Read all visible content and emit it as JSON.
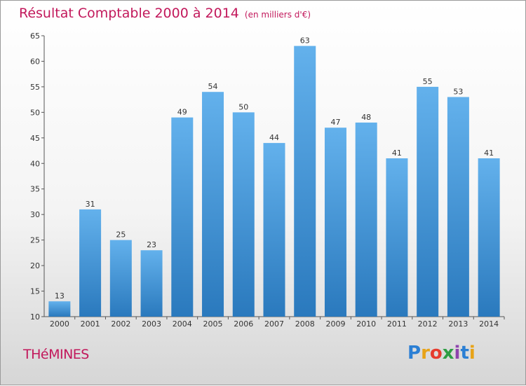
{
  "chart_data": {
    "type": "bar",
    "title": "Résultat Comptable 2000 à 2014",
    "subtitle": "(en milliers d'€)",
    "xlabel": "",
    "ylabel": "",
    "ylim": [
      10,
      65
    ],
    "yticks": [
      10,
      15,
      20,
      25,
      30,
      35,
      40,
      45,
      50,
      55,
      60,
      65
    ],
    "grid": false,
    "categories": [
      "2000",
      "2001",
      "2002",
      "2003",
      "2004",
      "2005",
      "2006",
      "2007",
      "2008",
      "2009",
      "2010",
      "2011",
      "2012",
      "2013",
      "2014"
    ],
    "values": [
      13,
      31,
      25,
      23,
      49,
      54,
      50,
      44,
      63,
      47,
      48,
      41,
      55,
      53,
      41
    ]
  },
  "commune": "THéMINES",
  "logo": {
    "letters": [
      "P",
      "r",
      "o",
      "x",
      "i",
      "t",
      "i"
    ],
    "colors": [
      "#2b7fd4",
      "#e8a317",
      "#e63b2e",
      "#2e9e44",
      "#8e44ad",
      "#2b7fd4",
      "#e8a317"
    ]
  },
  "colors": {
    "bar_top": "#63b1ec",
    "bar_bottom": "#2a79bd",
    "title": "#c2185b",
    "axis": "#555555"
  }
}
